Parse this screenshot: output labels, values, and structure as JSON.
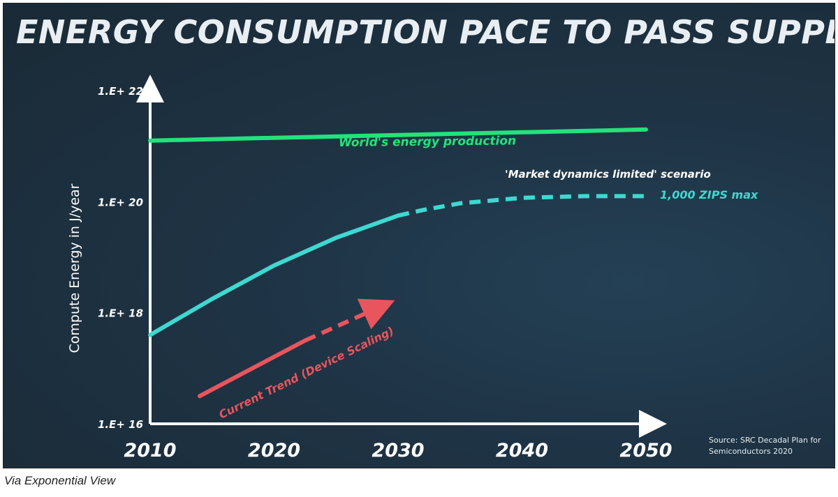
{
  "title": "ENERGY CONSUMPTION PACE TO PASS SUPPLY",
  "caption": "Via Exponential View",
  "source_note": [
    "Source: SRC Decadal Plan for",
    "Semiconductors 2020"
  ],
  "chart_data": {
    "type": "line",
    "title": "ENERGY CONSUMPTION PACE TO PASS SUPPLY",
    "ylabel": "Compute Energy in J/year",
    "xlabel": "",
    "x_ticks": [
      "2010",
      "2020",
      "2030",
      "2040",
      "2050"
    ],
    "y_ticks": [
      "1.E+ 16",
      "1.E+ 18",
      "1.E+ 20",
      "1.E+ 22"
    ],
    "y_scale": "log10",
    "xlim": [
      2010,
      2050
    ],
    "ylim_exponent": [
      16,
      22
    ],
    "series": [
      {
        "name": "World's energy production",
        "color": "#22e37a",
        "style": "solid",
        "points": [
          [
            2010,
            21.1
          ],
          [
            2020,
            21.15
          ],
          [
            2030,
            21.2
          ],
          [
            2040,
            21.25
          ],
          [
            2050,
            21.3
          ]
        ]
      },
      {
        "name": "'Market dynamics limited' scenario",
        "color": "#3fd8d0",
        "style": "solid-then-dashed",
        "dash_from": 2031,
        "end_label": "1,000 ZIPS max",
        "points": [
          [
            2010,
            17.6
          ],
          [
            2015,
            18.25
          ],
          [
            2020,
            18.85
          ],
          [
            2025,
            19.35
          ],
          [
            2030,
            19.75
          ],
          [
            2032,
            19.85
          ],
          [
            2035,
            19.97
          ],
          [
            2040,
            20.07
          ],
          [
            2045,
            20.1
          ],
          [
            2050,
            20.1
          ]
        ]
      },
      {
        "name": "Current Trend (Device Scaling)",
        "color": "#e8555d",
        "style": "solid-then-dashed",
        "dash_from": 2023,
        "points": [
          [
            2014,
            16.5
          ],
          [
            2022.5,
            17.5
          ],
          [
            2028.5,
            18.1
          ]
        ]
      }
    ]
  },
  "colors": {
    "background": "#1e3344",
    "axis": "#ffffff",
    "text": "#ffffff"
  }
}
